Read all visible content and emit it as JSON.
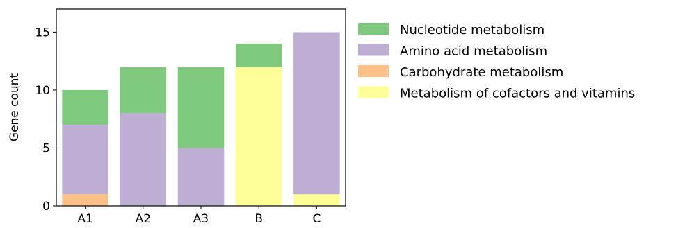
{
  "chart_data": {
    "type": "bar",
    "stacked": true,
    "categories": [
      "A1",
      "A2",
      "A3",
      "B",
      "C"
    ],
    "series": [
      {
        "name": "Carbohydrate metabolism",
        "color": "#fdc086",
        "values": [
          1,
          0,
          0,
          0,
          0
        ]
      },
      {
        "name": "Metabolism of cofactors and vitamins",
        "color": "#ffff99",
        "values": [
          0,
          0,
          0,
          12,
          1
        ]
      },
      {
        "name": "Amino acid metabolism",
        "color": "#beaed4",
        "values": [
          6,
          8,
          5,
          0,
          14
        ]
      },
      {
        "name": "Nucleotide metabolism",
        "color": "#7fc97f",
        "values": [
          3,
          4,
          7,
          2,
          0
        ]
      }
    ],
    "legend_order": [
      "Nucleotide metabolism",
      "Amino acid metabolism",
      "Carbohydrate metabolism",
      "Metabolism of cofactors and vitamins"
    ],
    "xlabel": "",
    "ylabel": "Gene count",
    "ylim": [
      0,
      17
    ],
    "yticks": [
      0,
      5,
      10,
      15
    ],
    "grid": false,
    "legend_position": "outside-right-top"
  }
}
